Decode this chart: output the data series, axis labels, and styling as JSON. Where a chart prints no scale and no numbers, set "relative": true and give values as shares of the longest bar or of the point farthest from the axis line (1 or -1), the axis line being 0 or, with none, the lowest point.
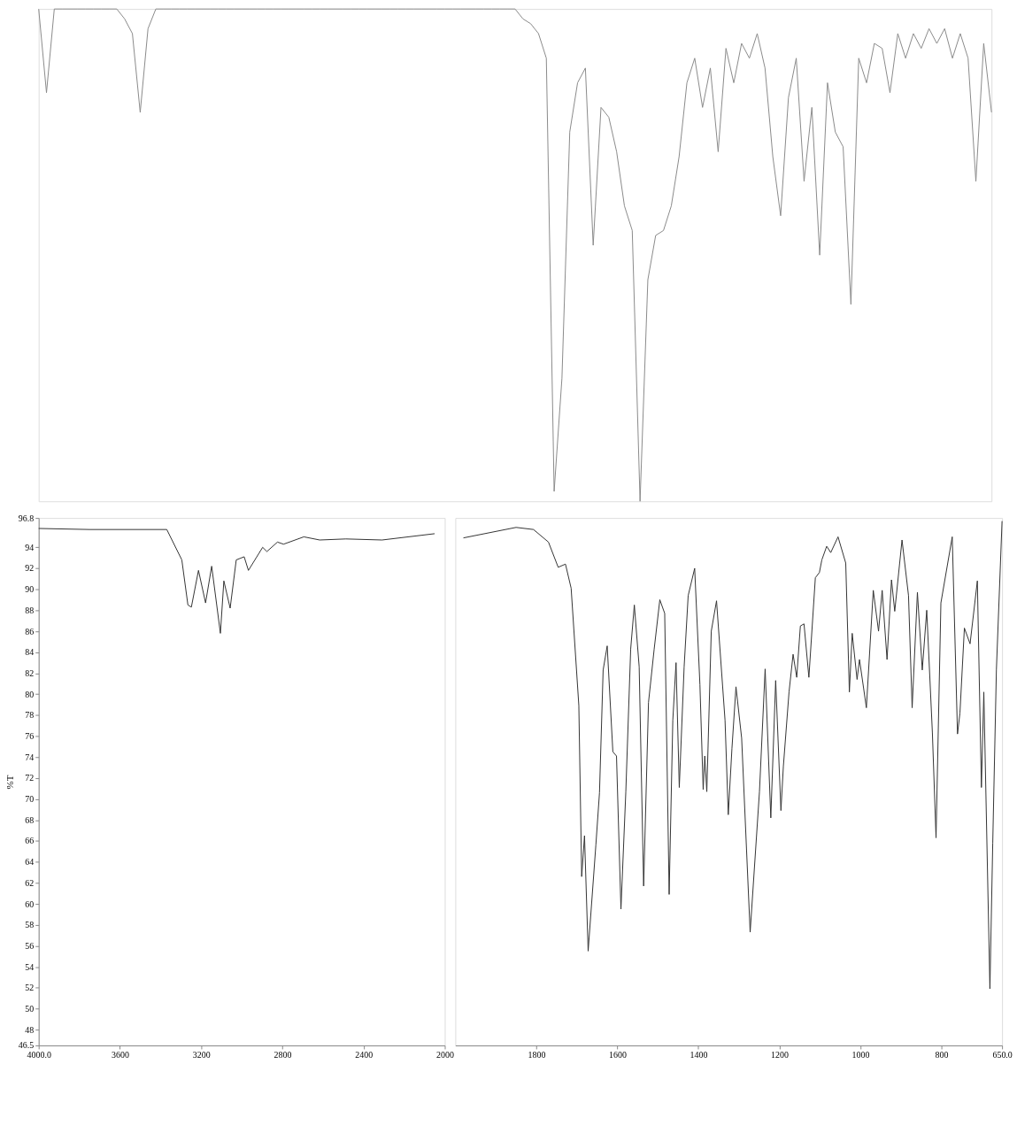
{
  "chart_data": [
    {
      "type": "line",
      "relative": true,
      "tick_labels": false,
      "color": "#8a8a8a",
      "categories": [
        null,
        null,
        null,
        null,
        null,
        null,
        null,
        null,
        null,
        null,
        null,
        null,
        null,
        null,
        null,
        null,
        null,
        null,
        null,
        null,
        null,
        null,
        null,
        null,
        null,
        null,
        null,
        null,
        null,
        null,
        null,
        null,
        null,
        null,
        null,
        null,
        null,
        null,
        null,
        null,
        null,
        null,
        null,
        null,
        null,
        null,
        null,
        null,
        null,
        null,
        null,
        null,
        null,
        null,
        null,
        null,
        null,
        null,
        null,
        null,
        null,
        null,
        null,
        null,
        null,
        null,
        null,
        null,
        null,
        null,
        null,
        null,
        null,
        null,
        null,
        null,
        null,
        null,
        null,
        null,
        null,
        null,
        null,
        null,
        null,
        null,
        null,
        null,
        null,
        null,
        null,
        null,
        null,
        null,
        null,
        null,
        null,
        null,
        null,
        null,
        null,
        null,
        null,
        null,
        null,
        null,
        null,
        null,
        null,
        null,
        null,
        null,
        null,
        null,
        null,
        null,
        null,
        null,
        null,
        null,
        null,
        null,
        null
      ],
      "values": [
        1,
        0.83,
        1,
        1,
        1,
        1,
        1,
        1,
        1,
        1,
        1,
        0.98,
        0.95,
        0.79,
        0.96,
        1,
        1,
        1,
        1,
        1,
        1,
        1,
        1,
        1,
        1,
        1,
        1,
        1,
        1,
        1,
        1,
        1,
        1,
        1,
        1,
        1,
        1,
        1,
        1,
        1,
        1,
        1,
        1,
        1,
        1,
        1,
        1,
        1,
        1,
        1,
        1,
        1,
        1,
        1,
        1,
        1,
        1,
        1,
        1,
        1,
        1,
        1,
        0.98,
        0.97,
        0.95,
        0.9,
        0.02,
        0.25,
        0.75,
        0.85,
        0.88,
        0.52,
        0.8,
        0.78,
        0.71,
        0.6,
        0.55,
        0.0,
        0.45,
        0.54,
        0.55,
        0.6,
        0.7,
        0.85,
        0.9,
        0.8,
        0.88,
        0.71,
        0.92,
        0.85,
        0.93,
        0.9,
        0.95,
        0.88,
        0.7,
        0.58,
        0.82,
        0.9,
        0.65,
        0.8,
        0.5,
        0.85,
        0.75,
        0.72,
        0.4,
        0.9,
        0.85,
        0.93,
        0.92,
        0.83,
        0.95,
        0.9,
        0.95,
        0.92,
        0.96,
        0.93,
        0.96,
        0.9,
        0.95,
        0.9,
        0.65,
        0.93,
        0.79
      ]
    },
    {
      "type": "line",
      "ylabel": "%T",
      "color": "#333333",
      "xlim": [
        4000,
        2000
      ],
      "ylim": [
        46.5,
        96.8
      ],
      "xticks": [
        {
          "value": 4000,
          "label": "4000.0"
        },
        3600,
        3200,
        2800,
        2400,
        2000
      ],
      "yticks": [
        46.5,
        48,
        50,
        52,
        54,
        56,
        58,
        60,
        62,
        64,
        66,
        68,
        70,
        72,
        74,
        76,
        78,
        80,
        82,
        84,
        86,
        88,
        90,
        92,
        94,
        96.8
      ],
      "x": [
        4000,
        3750,
        3369,
        3295,
        3265,
        3248,
        3213,
        3178,
        3148,
        3105,
        3088,
        3057,
        3027,
        2988,
        2967,
        2897,
        2876,
        2824,
        2794,
        2694,
        2616,
        2487,
        2309,
        2050
      ],
      "values": [
        95.8,
        95.7,
        95.7,
        92.8,
        88.5,
        88.3,
        91.8,
        88.7,
        92.2,
        85.8,
        90.8,
        88.2,
        92.8,
        93.1,
        91.8,
        94.0,
        93.6,
        94.5,
        94.3,
        95.0,
        94.7,
        94.8,
        94.7,
        95.3
      ]
    },
    {
      "type": "line",
      "tick_labels": "x",
      "color": "#333333",
      "xlim": [
        2000,
        650
      ],
      "ylim": [
        46.5,
        96.8
      ],
      "xticks": [
        1800,
        1600,
        1400,
        1200,
        1000,
        800,
        {
          "value": 650,
          "label": "650.0"
        }
      ],
      "x": [
        1980,
        1850,
        1807,
        1770,
        1746,
        1728,
        1714,
        1695,
        1688,
        1681,
        1672,
        1653,
        1644,
        1635,
        1625,
        1611,
        1602,
        1591,
        1579,
        1567,
        1558,
        1546,
        1535,
        1523,
        1509,
        1495,
        1483,
        1472,
        1463,
        1455,
        1447,
        1435,
        1425,
        1409,
        1396,
        1388,
        1384,
        1379,
        1368,
        1355,
        1334,
        1326,
        1317,
        1307,
        1293,
        1272,
        1249,
        1235,
        1221,
        1209,
        1196,
        1190,
        1176,
        1166,
        1157,
        1148,
        1139,
        1127,
        1111,
        1101,
        1095,
        1083,
        1073,
        1055,
        1036,
        1027,
        1020,
        1008,
        1002,
        992,
        985,
        968,
        955,
        946,
        934,
        923,
        915,
        897,
        881,
        872,
        859,
        847,
        836,
        822,
        813,
        801,
        773,
        760,
        754,
        743,
        729,
        711,
        701,
        695,
        680,
        673,
        664,
        650
      ],
      "values": [
        94.9,
        95.9,
        95.7,
        94.5,
        92.1,
        92.4,
        90.1,
        78.9,
        62.6,
        66.5,
        55.5,
        65.6,
        70.6,
        82.3,
        84.6,
        74.5,
        74.1,
        59.5,
        70.7,
        84.3,
        88.5,
        82.6,
        61.7,
        79.2,
        84.3,
        89.0,
        87.7,
        60.9,
        77.5,
        83.0,
        71.1,
        82.6,
        89.4,
        92.0,
        80.9,
        70.9,
        74.1,
        70.7,
        86.0,
        88.9,
        77.5,
        68.5,
        74.8,
        80.7,
        75.8,
        57.3,
        70.7,
        82.4,
        68.2,
        81.3,
        68.9,
        73.1,
        80.2,
        83.8,
        81.6,
        86.5,
        86.7,
        81.6,
        91.1,
        91.6,
        92.8,
        94.1,
        93.5,
        95.0,
        92.5,
        80.2,
        85.8,
        81.4,
        83.3,
        80.6,
        78.7,
        89.9,
        86.0,
        89.9,
        83.3,
        90.9,
        87.9,
        94.7,
        89.4,
        78.7,
        89.7,
        82.3,
        88.0,
        76.3,
        66.3,
        88.7,
        95.0,
        76.2,
        78.2,
        86.3,
        84.8,
        90.8,
        71.1,
        80.2,
        51.9,
        65.8,
        82.3,
        96.5
      ]
    }
  ]
}
